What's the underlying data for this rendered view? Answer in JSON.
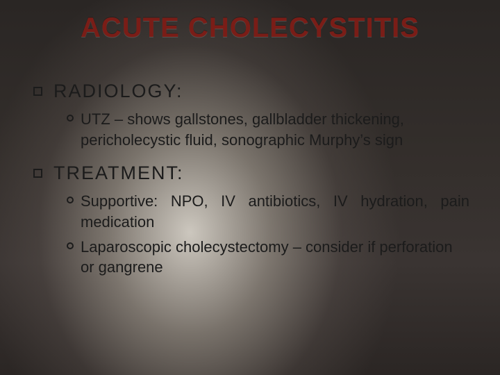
{
  "slide": {
    "title": "ACUTE CHOLECYSTITIS",
    "title_color": "#7a1d17",
    "title_fontsize": 40,
    "body_color": "#1b1b1b",
    "l1_fontsize": 27,
    "l2_fontsize": 22,
    "background": {
      "type": "radial-light-on-dark",
      "light_center": "#e6e1d7",
      "dark_edge": "#2a2624"
    },
    "sections": [
      {
        "heading": "RADIOLOGY:",
        "items": [
          {
            "text": "UTZ – shows gallstones, gallbladder thickening, pericholecystic fluid, sonographic Murphy’s sign"
          }
        ]
      },
      {
        "heading": "TREATMENT:",
        "items": [
          {
            "text": "Supportive: NPO, IV antibiotics, IV hydration, pain medication",
            "justify": true
          },
          {
            "text": "Laparoscopic cholecystectomy – consider if perforation or gangrene"
          }
        ]
      }
    ]
  }
}
